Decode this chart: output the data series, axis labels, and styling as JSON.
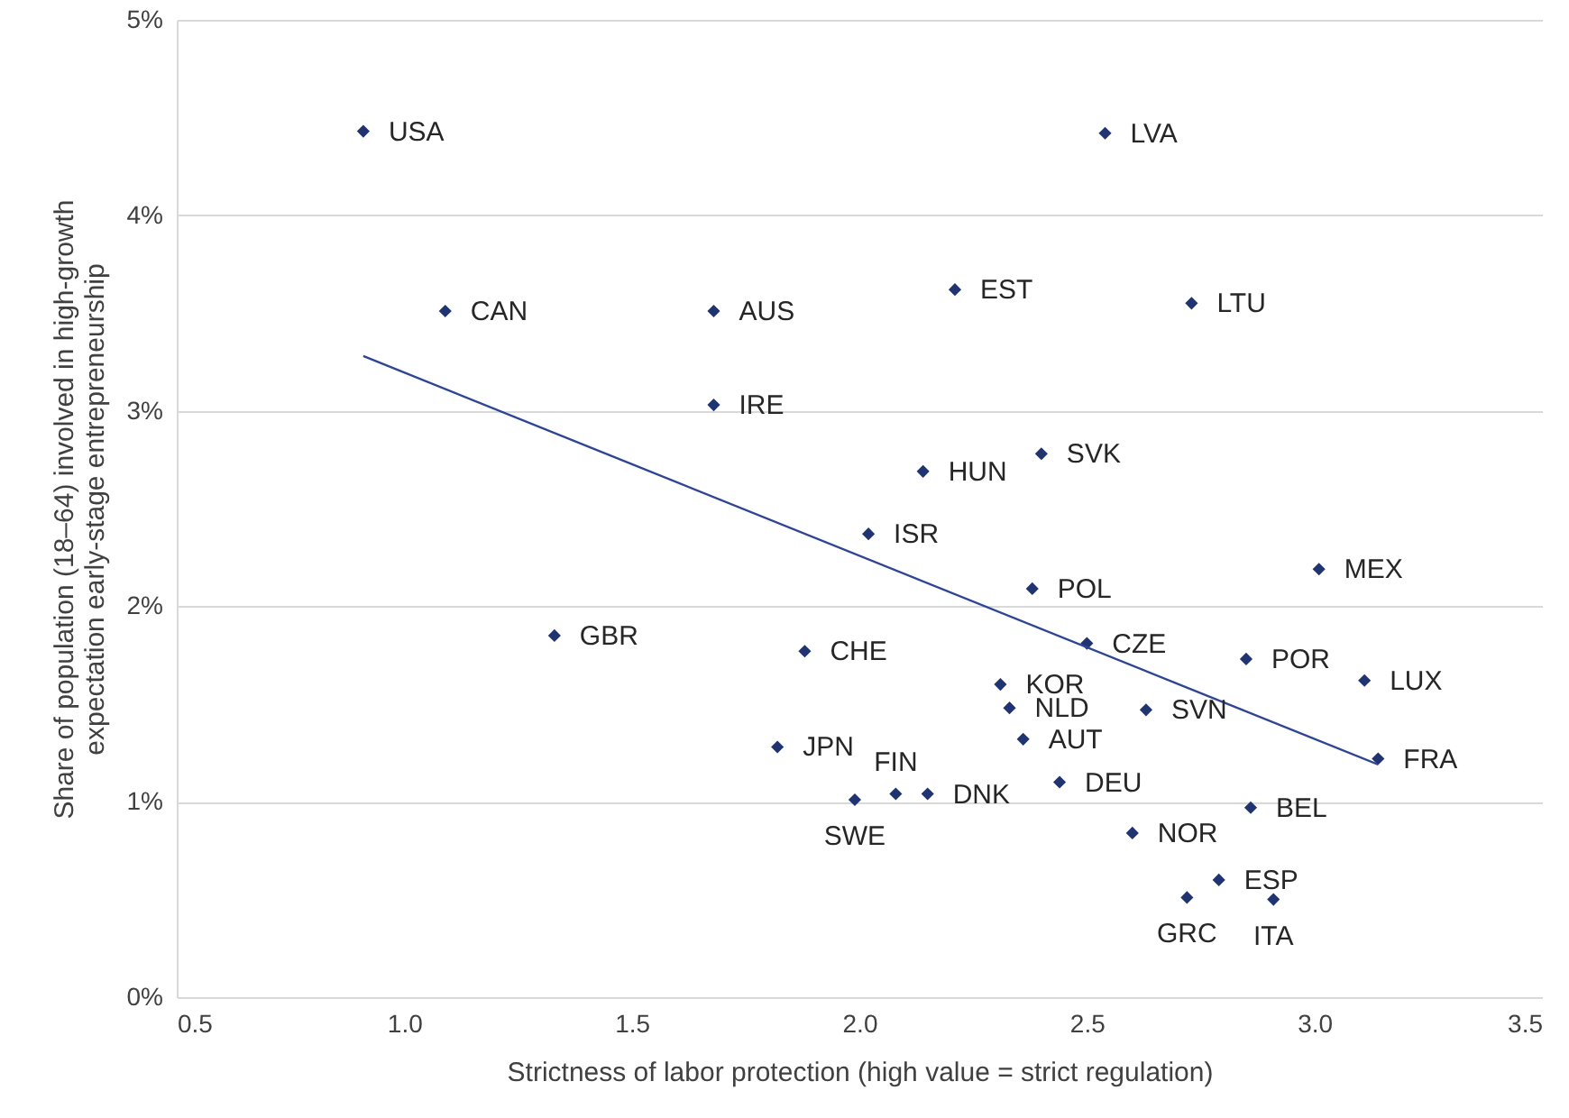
{
  "chart_data": {
    "type": "scatter",
    "xlabel": "Strictness of labor protection (high value = strict regulation)",
    "ylabel": "Share of population (18–64) involved in high-growth expectation early-stage entrepreneurship",
    "xlim": [
      0.5,
      3.5
    ],
    "ylim": [
      0,
      5
    ],
    "xticks": [
      0.5,
      {
        "value": 1,
        "label": "1.0"
      },
      1.5,
      {
        "value": 2,
        "label": "2.0"
      },
      2.5,
      {
        "value": 3,
        "label": "3.0"
      },
      3.5
    ],
    "yticks": [
      {
        "value": 0,
        "label": "0%"
      },
      {
        "value": 1,
        "label": "1%"
      },
      {
        "value": 2,
        "label": "2%"
      },
      {
        "value": 3,
        "label": "3%"
      },
      {
        "value": 4,
        "label": "4%"
      },
      {
        "value": 5,
        "label": "5%"
      }
    ],
    "grid": "y",
    "marker": "diamond",
    "series": [
      {
        "type": "scatter",
        "color": "#1f3470",
        "x": [
          0.91,
          1.09,
          1.68,
          1.68,
          2.54,
          2.21,
          2.73,
          2.14,
          2.4,
          2.02,
          2.38,
          3.01,
          1.33,
          1.88,
          2.5,
          2.85,
          3.11,
          2.31,
          2.33,
          2.63,
          2.36,
          1.82,
          3.14,
          2.44,
          1.99,
          2.08,
          2.15,
          2.86,
          2.6,
          2.79,
          2.72,
          2.91
        ],
        "values": [
          4.43,
          3.51,
          3.51,
          3.03,
          4.42,
          3.62,
          3.55,
          2.69,
          2.78,
          2.37,
          2.09,
          2.19,
          1.85,
          1.77,
          1.81,
          1.73,
          1.62,
          1.6,
          1.48,
          1.47,
          1.32,
          1.28,
          1.22,
          1.1,
          1.01,
          1.04,
          1.04,
          0.97,
          0.84,
          0.6,
          0.51,
          0.5
        ]
      },
      {
        "type": "line",
        "color": "#2e4595",
        "line_style": "solid",
        "marker": "none",
        "x": [
          0.91,
          3.14
        ],
        "values": [
          3.28,
          1.19
        ]
      }
    ],
    "annotations": [
      {
        "text": "USA",
        "x": 0.91,
        "y": 4.43
      },
      {
        "text": "CAN",
        "x": 1.09,
        "y": 3.51
      },
      {
        "text": "AUS",
        "x": 1.68,
        "y": 3.51
      },
      {
        "text": "IRE",
        "x": 1.68,
        "y": 3.03
      },
      {
        "text": "LVA",
        "x": 2.54,
        "y": 4.42
      },
      {
        "text": "EST",
        "x": 2.21,
        "y": 3.62
      },
      {
        "text": "LTU",
        "x": 2.73,
        "y": 3.55
      },
      {
        "text": "HUN",
        "x": 2.14,
        "y": 2.69
      },
      {
        "text": "SVK",
        "x": 2.4,
        "y": 2.78
      },
      {
        "text": "ISR",
        "x": 2.02,
        "y": 2.37
      },
      {
        "text": "POL",
        "x": 2.38,
        "y": 2.09
      },
      {
        "text": "MEX",
        "x": 3.01,
        "y": 2.19
      },
      {
        "text": "GBR",
        "x": 1.33,
        "y": 1.85
      },
      {
        "text": "CHE",
        "x": 1.88,
        "y": 1.77
      },
      {
        "text": "CZE",
        "x": 2.5,
        "y": 1.81
      },
      {
        "text": "POR",
        "x": 2.85,
        "y": 1.73
      },
      {
        "text": "LUX",
        "x": 3.11,
        "y": 1.62
      },
      {
        "text": "KOR",
        "x": 2.31,
        "y": 1.6
      },
      {
        "text": "NLD",
        "x": 2.33,
        "y": 1.48
      },
      {
        "text": "SVN",
        "x": 2.63,
        "y": 1.47
      },
      {
        "text": "AUT",
        "x": 2.36,
        "y": 1.32
      },
      {
        "text": "JPN",
        "x": 1.82,
        "y": 1.28
      },
      {
        "text": "FRA",
        "x": 3.14,
        "y": 1.22
      },
      {
        "text": "DEU",
        "x": 2.44,
        "y": 1.1
      },
      {
        "text": "SWE",
        "x": 1.99,
        "y": 1.01
      },
      {
        "text": "FIN",
        "x": 2.08,
        "y": 1.04
      },
      {
        "text": "DNK",
        "x": 2.15,
        "y": 1.04
      },
      {
        "text": "BEL",
        "x": 2.86,
        "y": 0.97
      },
      {
        "text": "NOR",
        "x": 2.6,
        "y": 0.84
      },
      {
        "text": "ESP",
        "x": 2.79,
        "y": 0.6
      },
      {
        "text": "GRC",
        "x": 2.72,
        "y": 0.51
      },
      {
        "text": "ITA",
        "x": 2.91,
        "y": 0.5
      }
    ]
  }
}
